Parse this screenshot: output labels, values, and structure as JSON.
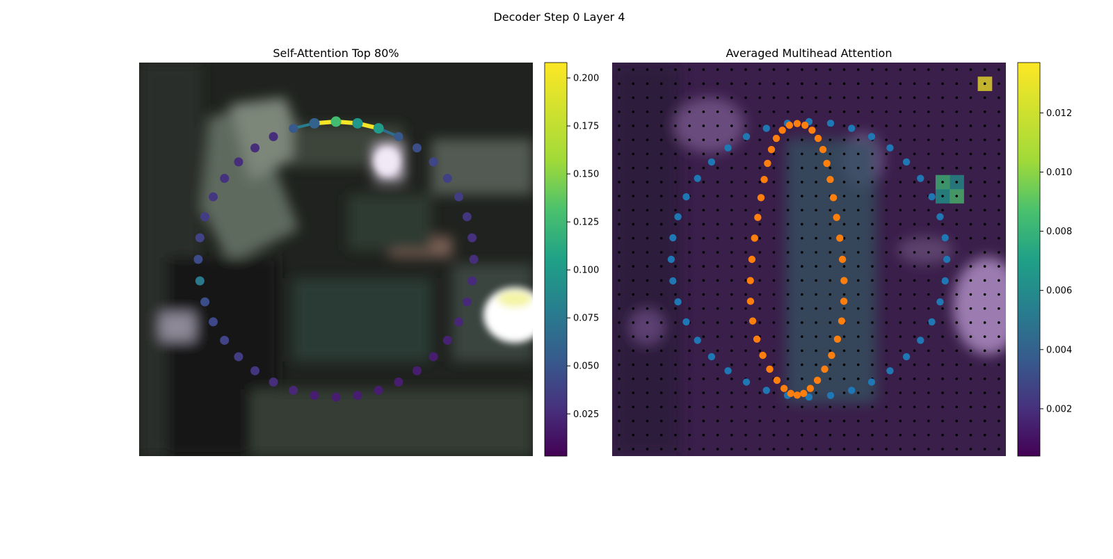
{
  "figure": {
    "suptitle": "Decoder Step 0 Layer 4"
  },
  "chart_data": [
    {
      "type": "scatter",
      "title": "Self-Attention Top 80%",
      "xlabel": "",
      "ylabel": "",
      "axes_visible": false,
      "background": "blurred dark photograph",
      "colormap": "viridis",
      "colorbar": {
        "range": [
          0.003,
          0.208
        ],
        "ticks": [
          "0.025",
          "0.050",
          "0.075",
          "0.100",
          "0.125",
          "0.150",
          "0.175",
          "0.200"
        ],
        "tick_values": [
          0.025,
          0.05,
          0.075,
          0.1,
          0.125,
          0.15,
          0.175,
          0.2
        ]
      },
      "series": [
        {
          "kind": "contour_points",
          "closed_ring": true,
          "count": 40,
          "attention_values": [
            0.06,
            0.068,
            0.145,
            0.11,
            0.115,
            0.06,
            0.052,
            0.046,
            0.043,
            0.04,
            0.035,
            0.032,
            0.03,
            0.028,
            0.026,
            0.025,
            0.022,
            0.02,
            0.02,
            0.02,
            0.02,
            0.02,
            0.02,
            0.02,
            0.025,
            0.03,
            0.035,
            0.04,
            0.045,
            0.048,
            0.052,
            0.085,
            0.05,
            0.045,
            0.04,
            0.036,
            0.033,
            0.03,
            0.03,
            0.03
          ],
          "highlighted": [
            1,
            2,
            3,
            4
          ],
          "connection_weights": [
            {
              "from": 1,
              "to": 2,
              "weight": 0.205
            },
            {
              "from": 2,
              "to": 3,
              "weight": 0.205
            },
            {
              "from": 3,
              "to": 4,
              "weight": 0.205
            },
            {
              "from": 0,
              "to": 1,
              "weight": 0.09
            },
            {
              "from": 4,
              "to": 5,
              "weight": 0.075
            }
          ]
        }
      ]
    },
    {
      "type": "heatmap",
      "title": "Averaged Multihead Attention",
      "xlabel": "",
      "ylabel": "",
      "axes_visible": false,
      "grid_size": [
        28,
        28
      ],
      "colormap": "viridis",
      "colorbar": {
        "range": [
          0.0004,
          0.0137
        ],
        "ticks": [
          "0.002",
          "0.004",
          "0.006",
          "0.008",
          "0.010",
          "0.012"
        ],
        "tick_values": [
          0.002,
          0.004,
          0.006,
          0.008,
          0.01,
          0.012
        ]
      },
      "hot_cells": [
        {
          "row": 1,
          "col": 26,
          "value": 0.0135
        },
        {
          "row": 8,
          "col": 23,
          "value": 0.0095
        },
        {
          "row": 9,
          "col": 24,
          "value": 0.0098
        },
        {
          "row": 9,
          "col": 23,
          "value": 0.0075
        },
        {
          "row": 8,
          "col": 24,
          "value": 0.0072
        }
      ],
      "series": [
        {
          "name": "",
          "color": "#1f77b4",
          "kind": "outer_contour",
          "count": 40
        },
        {
          "name": "",
          "color": "#ff7f0e",
          "kind": "inner_contour",
          "count": 40
        },
        {
          "name": "",
          "color": "#000000",
          "kind": "reference_grid",
          "count": 784
        }
      ]
    }
  ]
}
